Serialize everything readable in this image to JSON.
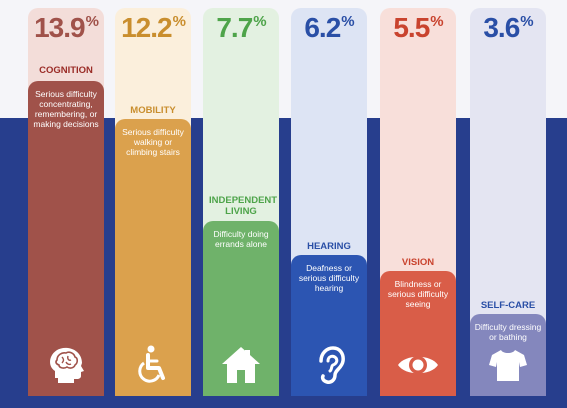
{
  "chart_data": {
    "type": "bar",
    "ylim": [
      0,
      15
    ],
    "categories": [
      "COGNITION",
      "MOBILITY",
      "INDEPENDENT LIVING",
      "HEARING",
      "VISION",
      "SELF-CARE"
    ],
    "values": [
      13.9,
      12.2,
      7.7,
      6.2,
      5.5,
      3.6
    ],
    "items": [
      {
        "value": "13.9",
        "category": "COGNITION",
        "desc": "Serious difficulty concentrating, remembering, or making decisions",
        "icon": "brain-head-icon",
        "color": "#a0524a",
        "light": "#f3ddd9",
        "text_color": "#a0524a"
      },
      {
        "value": "12.2",
        "category": "MOBILITY",
        "desc": "Serious difficulty walking or climbing stairs",
        "icon": "wheelchair-icon",
        "color": "#dba14d",
        "light": "#fbefdc",
        "text_color": "#c98e2e"
      },
      {
        "value": "7.7",
        "category": "INDEPENDENT LIVING",
        "desc": "Difficulty doing errands alone",
        "icon": "house-icon",
        "color": "#6fb26a",
        "light": "#e3f1e1",
        "text_color": "#4ea44a"
      },
      {
        "value": "6.2",
        "category": "HEARING",
        "desc": "Deafness or serious difficulty hearing",
        "icon": "ear-icon",
        "color": "#2c55b2",
        "light": "#dde4f4",
        "text_color": "#2a4fa6"
      },
      {
        "value": "5.5",
        "category": "VISION",
        "desc": "Blindness or serious difficulty seeing",
        "icon": "eye-icon",
        "color": "#d95d48",
        "light": "#f8dfda",
        "text_color": "#c9432e"
      },
      {
        "value": "3.6",
        "category": "SELF-CARE",
        "desc": "Difficulty dressing or bathing",
        "icon": "shirt-icon",
        "color": "#8487bd",
        "light": "#e4e5f2",
        "text_color": "#2a4fa6"
      }
    ],
    "percent_symbol": "%"
  }
}
